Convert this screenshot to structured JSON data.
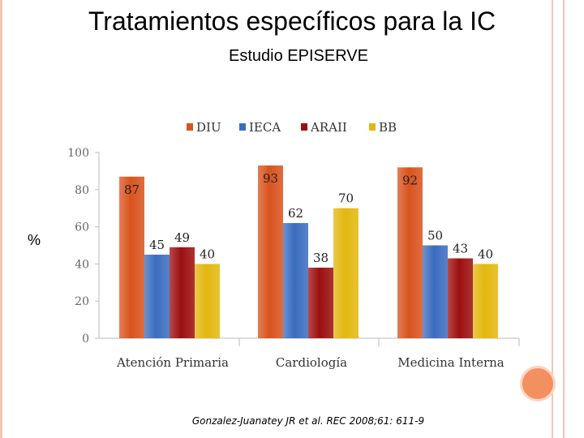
{
  "slide": {
    "title": "Tratamientos específicos para la IC",
    "subtitle": "Estudio EPISERVE",
    "y_unit": "%",
    "citation": "Gonzalez-Juanatey JR et al. REC 2008;61: 611-9"
  },
  "chart_data": {
    "type": "bar",
    "categories": [
      "Atención Primaria",
      "Cardiología",
      "Medicina Interna"
    ],
    "series": [
      {
        "name": "DIU",
        "values": [
          87,
          93,
          92
        ],
        "color": "#d9531e"
      },
      {
        "name": "IECA",
        "values": [
          45,
          62,
          50
        ],
        "color": "#3b6cc0"
      },
      {
        "name": "ARAII",
        "values": [
          49,
          38,
          43
        ],
        "color": "#9c0f0f"
      },
      {
        "name": "BB",
        "values": [
          40,
          70,
          40
        ],
        "color": "#e3b70f"
      }
    ],
    "ylim": [
      0,
      100
    ],
    "yticks": [
      0,
      20,
      40,
      60,
      80,
      100
    ],
    "grid": false,
    "legend": "top"
  }
}
